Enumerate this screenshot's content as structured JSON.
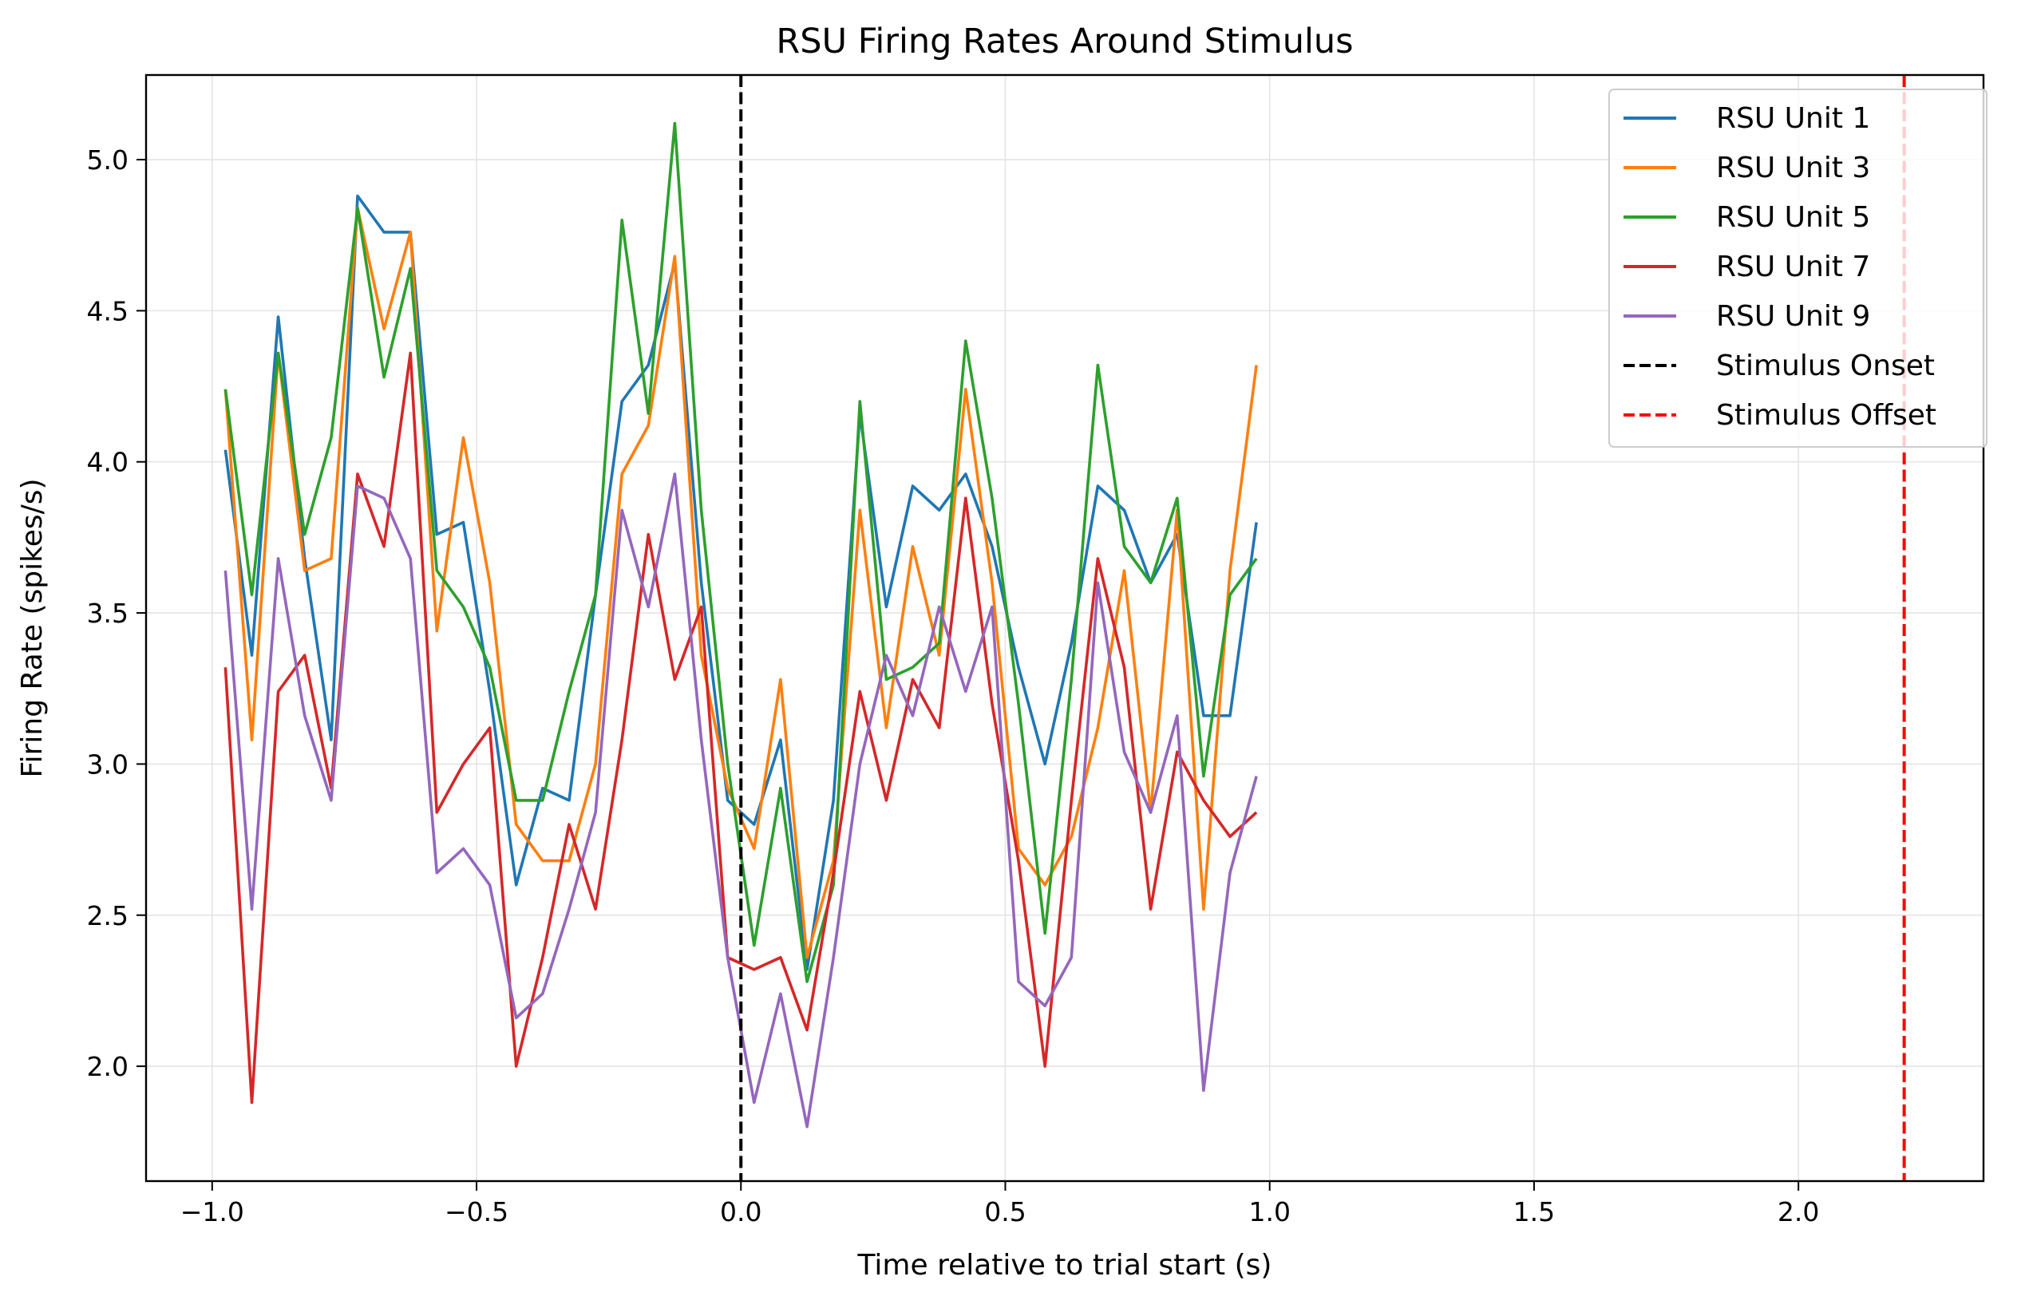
{
  "chart_data": {
    "type": "line",
    "title": "RSU Firing Rates Around Stimulus",
    "xlabel": "Time relative to trial start (s)",
    "ylabel": "Firing Rate (spikes/s)",
    "xlim": [
      -1.125,
      2.35
    ],
    "ylim": [
      1.62,
      5.28
    ],
    "xticks": [
      -1.0,
      -0.5,
      0.0,
      0.5,
      1.0,
      1.5,
      2.0
    ],
    "xtick_labels": [
      "−1.0",
      "−0.5",
      "0.0",
      "0.5",
      "1.0",
      "1.5",
      "2.0"
    ],
    "yticks": [
      2.0,
      2.5,
      3.0,
      3.5,
      4.0,
      4.5,
      5.0
    ],
    "ytick_labels": [
      "2.0",
      "2.5",
      "3.0",
      "3.5",
      "4.0",
      "4.5",
      "5.0"
    ],
    "grid": true,
    "legend_position": "top-right",
    "x": [
      -0.975,
      -0.925,
      -0.875,
      -0.825,
      -0.775,
      -0.725,
      -0.675,
      -0.625,
      -0.575,
      -0.525,
      -0.475,
      -0.425,
      -0.375,
      -0.325,
      -0.275,
      -0.225,
      -0.175,
      -0.125,
      -0.075,
      -0.025,
      0.025,
      0.075,
      0.125,
      0.175,
      0.225,
      0.275,
      0.325,
      0.375,
      0.425,
      0.475,
      0.525,
      0.575,
      0.625,
      0.675,
      0.725,
      0.775,
      0.825,
      0.875,
      0.925,
      0.975
    ],
    "series": [
      {
        "name": "RSU Unit 1",
        "color": "#1f77b4",
        "values": [
          4.04,
          3.36,
          4.48,
          3.68,
          3.08,
          4.88,
          4.76,
          4.76,
          3.76,
          3.8,
          3.24,
          2.6,
          2.92,
          2.88,
          3.56,
          4.2,
          4.32,
          4.66,
          3.6,
          2.88,
          2.8,
          3.08,
          2.32,
          2.88,
          4.16,
          3.52,
          3.92,
          3.84,
          3.96,
          3.72,
          3.32,
          3.0,
          3.4,
          3.92,
          3.84,
          3.6,
          3.76,
          3.16,
          3.16,
          3.8
        ]
      },
      {
        "name": "RSU Unit 3",
        "color": "#ff7f0e",
        "values": [
          4.24,
          3.08,
          4.36,
          3.64,
          3.68,
          4.84,
          4.44,
          4.76,
          3.44,
          4.08,
          3.6,
          2.8,
          2.68,
          2.68,
          3.0,
          3.96,
          4.12,
          4.68,
          3.36,
          2.92,
          2.72,
          3.28,
          2.36,
          2.68,
          3.84,
          3.12,
          3.72,
          3.36,
          4.24,
          3.6,
          2.72,
          2.6,
          2.76,
          3.12,
          3.64,
          2.84,
          3.84,
          2.52,
          3.64,
          4.32
        ]
      },
      {
        "name": "RSU Unit 5",
        "color": "#2ca02c",
        "values": [
          4.24,
          3.56,
          4.36,
          3.76,
          4.08,
          4.84,
          4.28,
          4.64,
          3.64,
          3.52,
          3.32,
          2.88,
          2.88,
          3.24,
          3.56,
          4.8,
          4.16,
          5.12,
          3.84,
          3.0,
          2.4,
          2.92,
          2.28,
          2.6,
          4.2,
          3.28,
          3.32,
          3.4,
          4.4,
          3.88,
          3.2,
          2.44,
          3.28,
          4.32,
          3.72,
          3.6,
          3.88,
          2.96,
          3.56,
          3.68
        ]
      },
      {
        "name": "RSU Unit 7",
        "color": "#d62728",
        "values": [
          3.32,
          1.88,
          3.24,
          3.36,
          2.92,
          3.96,
          3.72,
          4.36,
          2.84,
          3.0,
          3.12,
          2.0,
          2.36,
          2.8,
          2.52,
          3.08,
          3.76,
          3.28,
          3.52,
          2.36,
          2.32,
          2.36,
          2.12,
          2.64,
          3.24,
          2.88,
          3.28,
          3.12,
          3.88,
          3.2,
          2.68,
          2.0,
          2.88,
          3.68,
          3.32,
          2.52,
          3.04,
          2.88,
          2.76,
          2.84
        ]
      },
      {
        "name": "RSU Unit 9",
        "color": "#9467bd",
        "values": [
          3.64,
          2.52,
          3.68,
          3.16,
          2.88,
          3.92,
          3.88,
          3.68,
          2.64,
          2.72,
          2.6,
          2.16,
          2.24,
          2.52,
          2.84,
          3.84,
          3.52,
          3.96,
          3.08,
          2.36,
          1.88,
          2.24,
          1.8,
          2.36,
          3.0,
          3.36,
          3.16,
          3.52,
          3.24,
          3.52,
          2.28,
          2.2,
          2.36,
          3.6,
          3.04,
          2.84,
          3.16,
          1.92,
          2.64,
          2.96
        ]
      }
    ],
    "vlines": [
      {
        "name": "Stimulus Onset",
        "x": 0.0,
        "color": "#000000"
      },
      {
        "name": "Stimulus Offset",
        "x": 2.2,
        "color": "#ff0000"
      }
    ]
  }
}
